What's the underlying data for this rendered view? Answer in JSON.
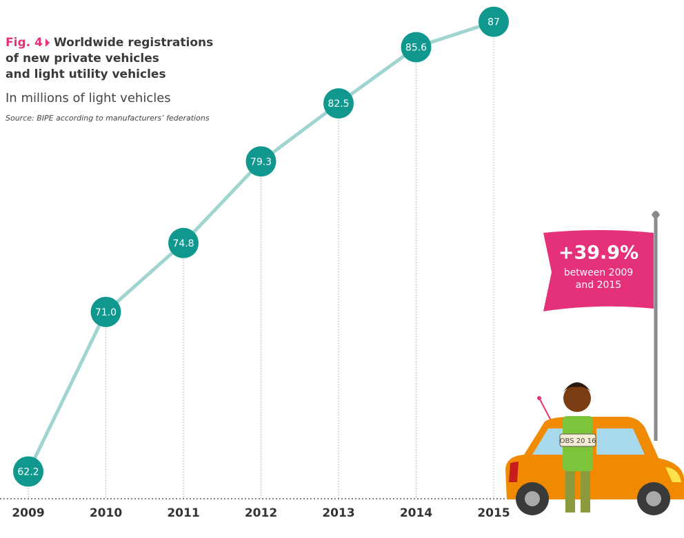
{
  "chart_data": {
    "type": "line",
    "figure_label": "Fig. 4",
    "title": [
      "Worldwide registrations",
      "of new private vehicles",
      "and light utility vehicles"
    ],
    "subtitle": "In millions of light vehicles",
    "source": "Source: BIPE according to manufacturers’ federations",
    "categories": [
      "2009",
      "2010",
      "2011",
      "2012",
      "2013",
      "2014",
      "2015"
    ],
    "values": [
      62.2,
      71.0,
      74.8,
      79.3,
      82.5,
      85.6,
      87
    ],
    "value_labels": [
      "62.2",
      "71.0",
      "74.8",
      "79.3",
      "82.5",
      "85.6",
      "87"
    ],
    "line_color": "#9fd4d1",
    "marker_color": "#10988f",
    "ylim": [
      60.7,
      88.2
    ],
    "annotation": {
      "value": "+39.9%",
      "text": [
        "between 2009",
        "and 2015"
      ],
      "color": "#e5307a"
    },
    "plate_text": "OBS 20 16"
  }
}
